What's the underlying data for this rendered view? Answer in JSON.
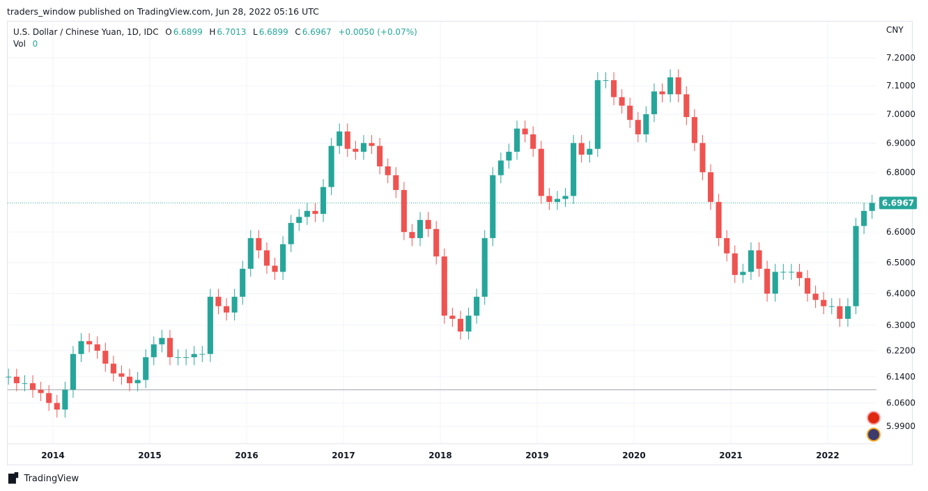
{
  "header": {
    "published": "traders_window published on TradingView.com, Jun 28, 2022 05:16 UTC"
  },
  "legend": {
    "symbol": "U.S. Dollar / Chinese Yuan, 1D, IDC",
    "o_label": "O",
    "o": "6.6899",
    "h_label": "H",
    "h": "6.7013",
    "l_label": "L",
    "l": "6.6899",
    "c_label": "C",
    "c": "6.6967",
    "change": "+0.0050 (+0.07%)",
    "vol_label": "Vol",
    "vol": "0"
  },
  "footer": {
    "brand": "TradingView",
    "logo_text": "17"
  },
  "colors": {
    "up": "#26a69a",
    "down": "#ef5350",
    "grid": "#f0f3fa",
    "axis_text": "#131722",
    "price_label_bg": "#26a69a",
    "hline": "#b2b5be"
  },
  "chart_data": {
    "type": "candlestick",
    "title": "U.S. Dollar / Chinese Yuan, 1D, IDC",
    "currency": "CNY",
    "y_scale": "log",
    "ylim": [
      5.96,
      7.24
    ],
    "y_ticks": [
      "7.2000",
      "7.1000",
      "7.0000",
      "6.9000",
      "6.8000",
      "6.6000",
      "6.5000",
      "6.4000",
      "6.3000",
      "6.2200",
      "6.1400",
      "6.0600",
      "5.9900"
    ],
    "x_ticks": [
      "2014",
      "2015",
      "2016",
      "2017",
      "2018",
      "2019",
      "2020",
      "2021",
      "2022"
    ],
    "last_price": "6.6967",
    "horizontal_line": 6.1,
    "grid": true,
    "start": "2013-07",
    "interval_shown": "monthly approximation of daily closes",
    "closes": [
      6.14,
      6.12,
      6.12,
      6.1,
      6.09,
      6.06,
      6.04,
      6.1,
      6.21,
      6.25,
      6.24,
      6.22,
      6.18,
      6.15,
      6.14,
      6.12,
      6.13,
      6.2,
      6.24,
      6.26,
      6.2,
      6.2,
      6.2,
      6.21,
      6.21,
      6.39,
      6.36,
      6.34,
      6.39,
      6.48,
      6.58,
      6.54,
      6.49,
      6.47,
      6.56,
      6.63,
      6.65,
      6.67,
      6.66,
      6.75,
      6.89,
      6.94,
      6.88,
      6.87,
      6.9,
      6.89,
      6.82,
      6.79,
      6.74,
      6.6,
      6.58,
      6.64,
      6.61,
      6.52,
      6.33,
      6.32,
      6.28,
      6.33,
      6.39,
      6.58,
      6.79,
      6.84,
      6.87,
      6.95,
      6.93,
      6.88,
      6.72,
      6.7,
      6.71,
      6.72,
      6.9,
      6.86,
      6.88,
      7.12,
      7.12,
      7.06,
      7.03,
      6.98,
      6.93,
      7.0,
      7.08,
      7.07,
      7.13,
      7.07,
      6.99,
      6.9,
      6.8,
      6.7,
      6.58,
      6.53,
      6.46,
      6.47,
      6.54,
      6.48,
      6.4,
      6.47,
      6.47,
      6.47,
      6.45,
      6.4,
      6.38,
      6.36,
      6.36,
      6.32,
      6.36,
      6.62,
      6.67,
      6.6967
    ]
  }
}
